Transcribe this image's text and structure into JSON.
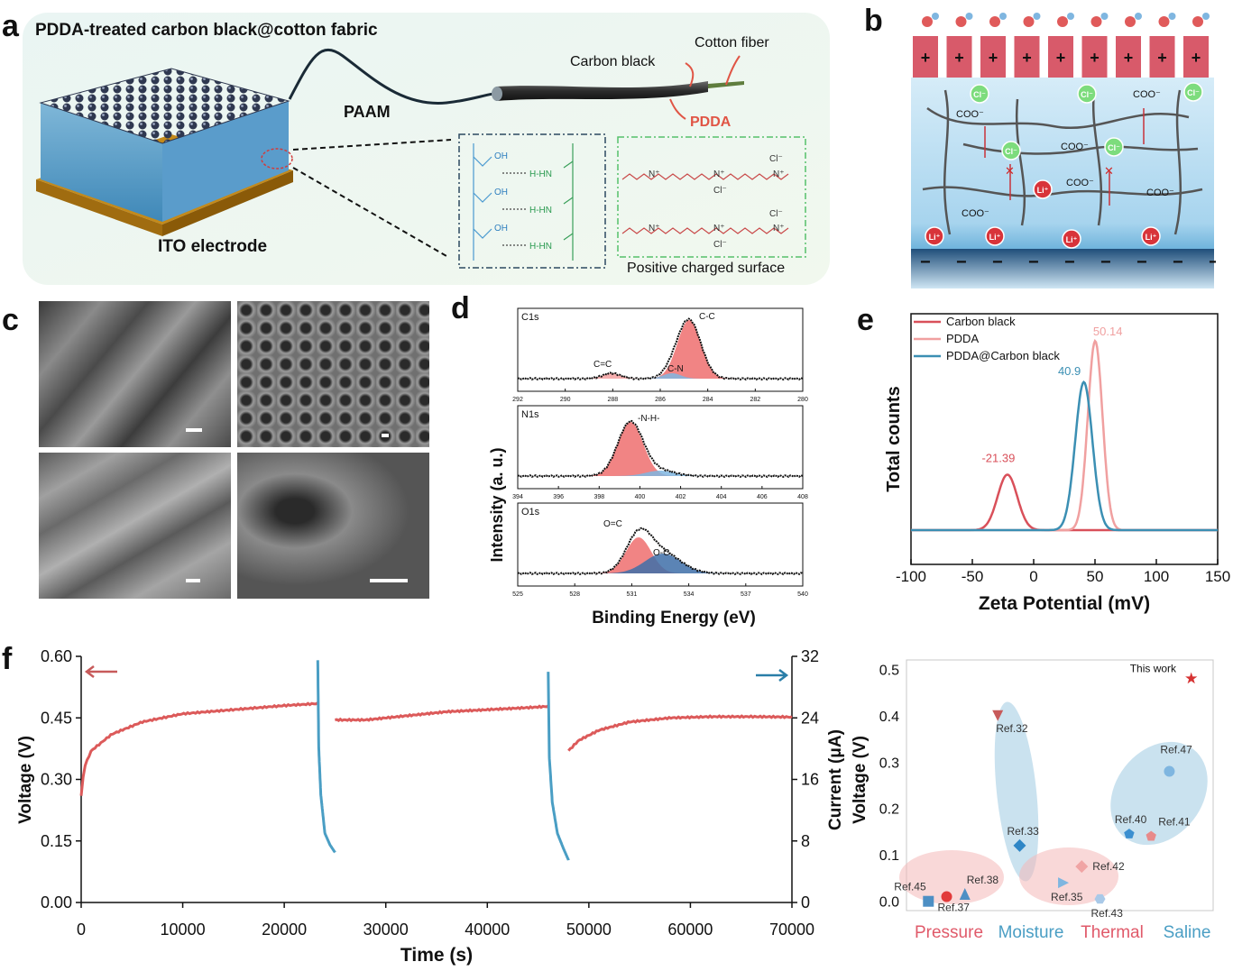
{
  "panel_labels": {
    "a": "a",
    "b": "b",
    "c": "c",
    "d": "d",
    "e": "e",
    "f": "f"
  },
  "panel_a": {
    "title": "PDDA-treated carbon black@cotton fabric",
    "paam": "PAAM",
    "ito": "ITO electrode",
    "carbon_black": "Carbon black",
    "cotton_fiber": "Cotton fiber",
    "pdda": "PDDA",
    "positive_surface": "Positive charged surface",
    "oh": "OH",
    "hhn": "H-HN",
    "o": "O",
    "cl": "Cl⁻",
    "nplus": "N⁺"
  },
  "panel_b": {
    "plus": "+",
    "minus": "−",
    "coo": "COO⁻",
    "cl": "Cl⁻",
    "li": "Li⁺",
    "x": "✕"
  },
  "panel_d": {
    "ylabel": "Intensity (a. u.)",
    "xlabel": "Binding Energy (eV)",
    "c1s": {
      "name": "C1s",
      "ticks": [
        "292",
        "290",
        "288",
        "286",
        "284",
        "282",
        "280"
      ],
      "peaks": [
        "C-C",
        "C=C",
        "C-N"
      ]
    },
    "n1s": {
      "name": "N1s",
      "ticks": [
        "394",
        "396",
        "398",
        "400",
        "402",
        "404",
        "406",
        "408"
      ],
      "peaks": [
        "-N-H-"
      ]
    },
    "o1s": {
      "name": "O1s",
      "ticks": [
        "525",
        "528",
        "531",
        "534",
        "537",
        "540"
      ],
      "peaks": [
        "O=C",
        "O-C"
      ]
    }
  },
  "chart_data": [
    {
      "type": "line",
      "panel": "e",
      "xlabel": "Zeta Potential (mV)",
      "ylabel": "Total counts",
      "xlim": [
        -100,
        150
      ],
      "xticks": [
        "-100",
        "-50",
        "0",
        "50",
        "100",
        "150"
      ],
      "series": [
        {
          "name": "Carbon black",
          "color": "#d9505a",
          "peak_x": -21.39,
          "peak_label": "-21.39",
          "relative_height": 0.27,
          "width": 8
        },
        {
          "name": "PDDA",
          "color": "#f0a0a0",
          "peak_x": 50.14,
          "peak_label": "50.14",
          "relative_height": 0.92,
          "width": 6
        },
        {
          "name": "PDDA@Carbon black",
          "color": "#3b8fb3",
          "peak_x": 40.9,
          "peak_label": "40.9",
          "relative_height": 0.72,
          "width": 7
        }
      ]
    },
    {
      "type": "line",
      "panel": "f",
      "xlabel": "Time (s)",
      "ylabel_left": "Voltage (V)",
      "ylabel_right": "Current (μA)",
      "xlim": [
        0,
        70000
      ],
      "ylim_left": [
        0,
        0.6
      ],
      "ylim_right": [
        0,
        32
      ],
      "xticks": [
        "0",
        "10000",
        "20000",
        "30000",
        "40000",
        "50000",
        "60000",
        "70000"
      ],
      "yticks_left": [
        "0.00",
        "0.15",
        "0.30",
        "0.45",
        "0.60"
      ],
      "yticks_right": [
        "0",
        "8",
        "16",
        "24",
        "32"
      ],
      "voltage_segments": [
        {
          "x": [
            0,
            300,
            1000,
            3000,
            6000,
            10000,
            15000,
            20000,
            23300
          ],
          "y": [
            0.26,
            0.33,
            0.37,
            0.41,
            0.44,
            0.46,
            0.47,
            0.48,
            0.485
          ]
        },
        {
          "x": [
            25000,
            28000,
            32000,
            36000,
            40000,
            44000,
            46000
          ],
          "y": [
            0.445,
            0.445,
            0.455,
            0.465,
            0.47,
            0.475,
            0.478
          ]
        },
        {
          "x": [
            48000,
            49000,
            51000,
            54000,
            58000,
            62000,
            66000,
            70000
          ],
          "y": [
            0.37,
            0.395,
            0.42,
            0.44,
            0.45,
            0.453,
            0.453,
            0.452
          ]
        }
      ],
      "current_segments": [
        {
          "x": [
            23300,
            23400,
            23600,
            24000,
            24500,
            25000
          ],
          "y": [
            31.5,
            20,
            14,
            9,
            7.5,
            6.5
          ]
        },
        {
          "x": [
            46000,
            46100,
            46400,
            46900,
            47500,
            48000
          ],
          "y": [
            30,
            19,
            13,
            9,
            7,
            5.5
          ]
        }
      ]
    },
    {
      "type": "scatter",
      "panel": "f-right",
      "ylabel": "Voltage (V)",
      "ylim": [
        -0.02,
        0.52
      ],
      "yticks": [
        "0.0",
        "0.1",
        "0.2",
        "0.3",
        "0.4",
        "0.5"
      ],
      "categories": [
        "Pressure",
        "Moisture",
        "Thermal",
        "Saline"
      ],
      "points": [
        {
          "label": "Ref.45",
          "x": 0.6,
          "y": 0.0,
          "marker": "square",
          "color": "#4d8fc4"
        },
        {
          "label": "Ref.37",
          "x": 1.1,
          "y": 0.01,
          "marker": "circle",
          "color": "#e23a3a"
        },
        {
          "label": "Ref.38",
          "x": 1.6,
          "y": 0.015,
          "marker": "triangle",
          "color": "#4d8fc4"
        },
        {
          "label": "Ref.32",
          "x": 2.5,
          "y": 0.4,
          "marker": "triangle-down",
          "color": "#c75a5a"
        },
        {
          "label": "Ref.33",
          "x": 3.1,
          "y": 0.12,
          "marker": "diamond",
          "color": "#2e86c6"
        },
        {
          "label": "Ref.35",
          "x": 4.3,
          "y": 0.04,
          "marker": "triangle-right",
          "color": "#7fb6e0"
        },
        {
          "label": "Ref.42",
          "x": 4.8,
          "y": 0.075,
          "marker": "diamond",
          "color": "#f0a4a4"
        },
        {
          "label": "Ref.43",
          "x": 5.3,
          "y": 0.005,
          "marker": "hexagon",
          "color": "#a9c9e8"
        },
        {
          "label": "Ref.40",
          "x": 6.1,
          "y": 0.145,
          "marker": "pentagon",
          "color": "#3b8fd0"
        },
        {
          "label": "Ref.41",
          "x": 6.7,
          "y": 0.14,
          "marker": "pentagon",
          "color": "#e88a8a"
        },
        {
          "label": "Ref.47",
          "x": 7.2,
          "y": 0.28,
          "marker": "circle",
          "color": "#7fb6e0"
        },
        {
          "label": "This work",
          "x": 7.8,
          "y": 0.48,
          "marker": "star",
          "color": "#d63232"
        }
      ]
    }
  ]
}
